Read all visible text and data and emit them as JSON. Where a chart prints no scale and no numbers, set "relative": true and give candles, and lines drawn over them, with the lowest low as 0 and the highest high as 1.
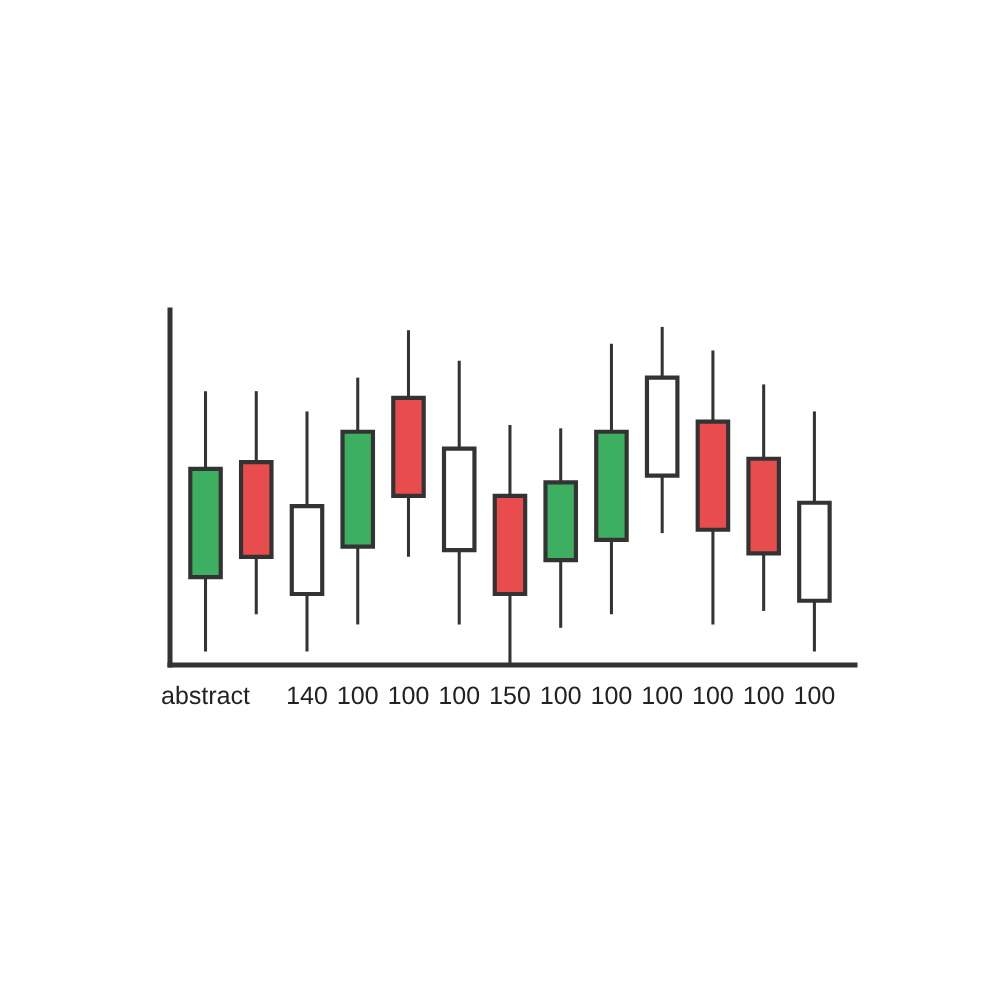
{
  "chart_data": {
    "type": "candlestick",
    "relative": true,
    "categories": [
      "abstract",
      null,
      "140",
      "100",
      "100",
      "100",
      "150",
      "100",
      "100",
      "100",
      "100",
      "100",
      "100"
    ],
    "ohlc": [
      [
        0.26,
        0.81,
        0.04,
        0.58
      ],
      [
        0.6,
        0.81,
        0.15,
        0.32
      ],
      [
        0.21,
        0.75,
        0.04,
        0.47
      ],
      [
        0.35,
        0.85,
        0.12,
        0.69
      ],
      [
        0.79,
        0.99,
        0.32,
        0.5
      ],
      [
        0.34,
        0.9,
        0.12,
        0.64
      ],
      [
        0.5,
        0.71,
        0.0,
        0.21
      ],
      [
        0.31,
        0.7,
        0.11,
        0.54
      ],
      [
        0.37,
        0.95,
        0.15,
        0.69
      ],
      [
        0.56,
        1.0,
        0.39,
        0.85
      ],
      [
        0.72,
        0.93,
        0.12,
        0.4
      ],
      [
        0.61,
        0.83,
        0.16,
        0.33
      ],
      [
        0.19,
        0.75,
        0.04,
        0.48
      ]
    ],
    "colors": [
      "#3cb060",
      "#e84c4c",
      "#ffffff",
      "#3cb060",
      "#e84c4c",
      "#ffffff",
      "#e84c4c",
      "#3cb060",
      "#3cb060",
      "#ffffff",
      "#e84c4c",
      "#e84c4c",
      "#ffffff"
    ],
    "grid": false
  }
}
